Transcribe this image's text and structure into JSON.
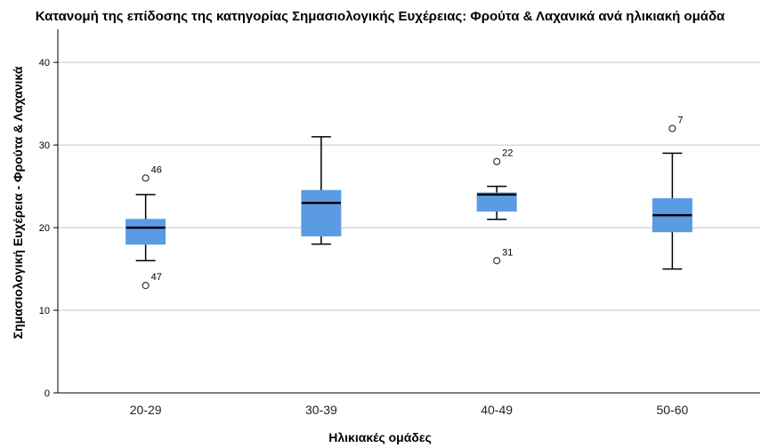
{
  "chart_data": {
    "type": "boxplot",
    "title": "Κατανομή της επίδοσης της κατηγορίας Σημασιολογικής Ευχέρειας: Φρούτα & Λαχανικά ανά ηλικιακή ομάδα",
    "xlabel": "Ηλικιακές ομάδες",
    "ylabel": "Σημασιολογική Ευχέρεια - Φρούτα & Λαχανικά",
    "ylim": [
      0,
      44
    ],
    "yticks": [
      0,
      10,
      20,
      30,
      40
    ],
    "grid": true,
    "box_color": "#5b9be3",
    "median_color": "#000000",
    "categories": [
      "20-29",
      "30-39",
      "40-49",
      "50-60"
    ],
    "boxes": [
      {
        "category": "20-29",
        "whisker_low": 16,
        "q1": 18,
        "median": 20,
        "q3": 21,
        "whisker_high": 24,
        "outliers": [
          {
            "value": 26,
            "label": "46"
          },
          {
            "value": 13,
            "label": "47"
          }
        ]
      },
      {
        "category": "30-39",
        "whisker_low": 18,
        "q1": 19,
        "median": 23,
        "q3": 24.5,
        "whisker_high": 31,
        "outliers": []
      },
      {
        "category": "40-49",
        "whisker_low": 21,
        "q1": 22,
        "median": 24,
        "q3": 24.2,
        "whisker_high": 25,
        "outliers": [
          {
            "value": 28,
            "label": "22"
          },
          {
            "value": 16,
            "label": "31"
          }
        ]
      },
      {
        "category": "50-60",
        "whisker_low": 15,
        "q1": 19.5,
        "median": 21.5,
        "q3": 23.5,
        "whisker_high": 29,
        "outliers": [
          {
            "value": 32,
            "label": "7"
          }
        ]
      }
    ]
  }
}
